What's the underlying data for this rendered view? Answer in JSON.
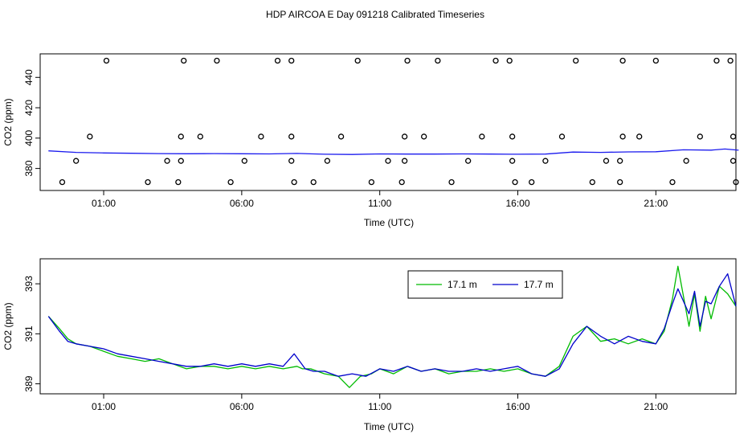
{
  "figure_title": "HDP AIRCOA E  Day 091218  Calibrated Timeseries",
  "chart_data": [
    {
      "type": "scatter",
      "title": "",
      "xlabel": "Time (UTC)",
      "ylabel": "CO2 (ppm)",
      "xlim": [
        -1.3,
        23.9
      ],
      "ylim": [
        365.5,
        455.5
      ],
      "x_ticks": [
        {
          "value": 1,
          "label": "01:00"
        },
        {
          "value": 6,
          "label": "06:00"
        },
        {
          "value": 11,
          "label": "11:00"
        },
        {
          "value": 16,
          "label": "16:00"
        },
        {
          "value": 21,
          "label": "21:00"
        }
      ],
      "y_ticks": [
        {
          "value": 380,
          "label": "380"
        },
        {
          "value": 400,
          "label": "400"
        },
        {
          "value": 420,
          "label": "420"
        },
        {
          "value": 440,
          "label": "440"
        }
      ],
      "points": [
        {
          "x": 1.1,
          "y": 451
        },
        {
          "x": 3.9,
          "y": 451
        },
        {
          "x": 5.1,
          "y": 451
        },
        {
          "x": 7.3,
          "y": 451
        },
        {
          "x": 7.8,
          "y": 451
        },
        {
          "x": 10.2,
          "y": 451
        },
        {
          "x": 12.0,
          "y": 451
        },
        {
          "x": 13.1,
          "y": 451
        },
        {
          "x": 15.2,
          "y": 451
        },
        {
          "x": 15.7,
          "y": 451
        },
        {
          "x": 18.1,
          "y": 451
        },
        {
          "x": 19.8,
          "y": 451
        },
        {
          "x": 21.0,
          "y": 451
        },
        {
          "x": 23.2,
          "y": 451
        },
        {
          "x": 23.7,
          "y": 451
        },
        {
          "x": 0.5,
          "y": 401
        },
        {
          "x": 3.8,
          "y": 401
        },
        {
          "x": 4.5,
          "y": 401
        },
        {
          "x": 6.7,
          "y": 401
        },
        {
          "x": 7.8,
          "y": 401
        },
        {
          "x": 9.6,
          "y": 401
        },
        {
          "x": 11.9,
          "y": 401
        },
        {
          "x": 12.6,
          "y": 401
        },
        {
          "x": 14.7,
          "y": 401
        },
        {
          "x": 15.8,
          "y": 401
        },
        {
          "x": 17.6,
          "y": 401
        },
        {
          "x": 19.8,
          "y": 401
        },
        {
          "x": 20.4,
          "y": 401
        },
        {
          "x": 22.6,
          "y": 401
        },
        {
          "x": 23.8,
          "y": 401
        },
        {
          "x": 0.0,
          "y": 385
        },
        {
          "x": 3.3,
          "y": 385
        },
        {
          "x": 3.8,
          "y": 385
        },
        {
          "x": 6.1,
          "y": 385
        },
        {
          "x": 7.8,
          "y": 385
        },
        {
          "x": 9.1,
          "y": 385
        },
        {
          "x": 11.3,
          "y": 385
        },
        {
          "x": 11.9,
          "y": 385
        },
        {
          "x": 14.2,
          "y": 385
        },
        {
          "x": 15.8,
          "y": 385
        },
        {
          "x": 17.0,
          "y": 385
        },
        {
          "x": 19.2,
          "y": 385
        },
        {
          "x": 19.7,
          "y": 385
        },
        {
          "x": 22.1,
          "y": 385
        },
        {
          "x": 23.8,
          "y": 385
        },
        {
          "x": -0.5,
          "y": 371
        },
        {
          "x": 2.6,
          "y": 371
        },
        {
          "x": 3.7,
          "y": 371
        },
        {
          "x": 5.6,
          "y": 371
        },
        {
          "x": 7.9,
          "y": 371
        },
        {
          "x": 8.6,
          "y": 371
        },
        {
          "x": 10.7,
          "y": 371
        },
        {
          "x": 11.8,
          "y": 371
        },
        {
          "x": 13.6,
          "y": 371
        },
        {
          "x": 15.9,
          "y": 371
        },
        {
          "x": 16.5,
          "y": 371
        },
        {
          "x": 18.7,
          "y": 371
        },
        {
          "x": 19.7,
          "y": 371
        },
        {
          "x": 21.6,
          "y": 371
        },
        {
          "x": 23.9,
          "y": 371
        }
      ],
      "series": [
        {
          "color": "#1a1aee",
          "x": [
            -1.0,
            0,
            1,
            2,
            3,
            4,
            5,
            6,
            7,
            8,
            9,
            10,
            11,
            12,
            13,
            14,
            15,
            16,
            17,
            18,
            19,
            20,
            21,
            22,
            23,
            23.5,
            24.0
          ],
          "y": [
            391.6,
            390.6,
            390.2,
            390.0,
            389.8,
            389.7,
            389.8,
            389.7,
            389.6,
            389.9,
            389.4,
            389.2,
            389.6,
            389.5,
            389.5,
            389.6,
            389.5,
            389.4,
            389.5,
            390.8,
            390.6,
            390.9,
            391.0,
            392.3,
            392.1,
            392.8,
            392.0
          ]
        }
      ]
    },
    {
      "type": "line",
      "title": "",
      "xlabel": "Time (UTC)",
      "ylabel": "CO2 (ppm)",
      "xlim": [
        -1.3,
        23.9
      ],
      "ylim": [
        388.6,
        394.0
      ],
      "x_ticks": [
        {
          "value": 1,
          "label": "01:00"
        },
        {
          "value": 6,
          "label": "06:00"
        },
        {
          "value": 11,
          "label": "11:00"
        },
        {
          "value": 16,
          "label": "16:00"
        },
        {
          "value": 21,
          "label": "21:00"
        }
      ],
      "y_ticks": [
        {
          "value": 389,
          "label": "389"
        },
        {
          "value": 391,
          "label": "391"
        },
        {
          "value": 393,
          "label": "393"
        }
      ],
      "legend_position": "top-right",
      "series": [
        {
          "name": "17.1 m",
          "color": "#00bb00",
          "x": [
            -1.0,
            -0.6,
            -0.3,
            0,
            0.5,
            1,
            1.5,
            2,
            2.5,
            3,
            3.5,
            4,
            4.5,
            5,
            5.5,
            6,
            6.5,
            7,
            7.5,
            8,
            8.2,
            8.5,
            9,
            9.5,
            9.9,
            10.3,
            10.7,
            11,
            11.5,
            12,
            12.5,
            13,
            13.5,
            14,
            14.5,
            15,
            15.5,
            16,
            16.5,
            17,
            17.5,
            18,
            18.5,
            19,
            19.5,
            20,
            20.5,
            21,
            21.3,
            21.6,
            21.8,
            22.0,
            22.2,
            22.4,
            22.6,
            22.8,
            23.0,
            23.3,
            23.6,
            23.9
          ],
          "y": [
            391.7,
            391.2,
            390.8,
            390.6,
            390.5,
            390.3,
            390.1,
            390.0,
            389.9,
            390.0,
            389.8,
            389.6,
            389.7,
            389.7,
            389.6,
            389.7,
            389.6,
            389.7,
            389.6,
            389.7,
            389.6,
            389.6,
            389.4,
            389.3,
            388.85,
            389.3,
            389.4,
            389.6,
            389.4,
            389.7,
            389.5,
            389.6,
            389.4,
            389.5,
            389.5,
            389.6,
            389.5,
            389.6,
            389.4,
            389.3,
            389.7,
            390.9,
            391.3,
            390.7,
            390.8,
            390.6,
            390.8,
            390.6,
            391.1,
            392.4,
            393.7,
            392.5,
            391.3,
            392.6,
            391.1,
            392.5,
            391.6,
            392.9,
            392.6,
            392.1
          ]
        },
        {
          "name": "17.7 m",
          "color": "#0000cc",
          "x": [
            -1.0,
            -0.6,
            -0.3,
            0,
            0.5,
            1,
            1.5,
            2,
            2.5,
            3,
            3.5,
            4,
            4.5,
            5,
            5.5,
            6,
            6.5,
            7,
            7.5,
            7.9,
            8.3,
            8.6,
            9,
            9.5,
            10,
            10.5,
            11,
            11.5,
            12,
            12.5,
            13,
            13.5,
            14,
            14.5,
            15,
            15.5,
            16,
            16.5,
            17,
            17.5,
            18,
            18.5,
            19,
            19.5,
            20,
            20.5,
            21,
            21.3,
            21.6,
            21.8,
            22.0,
            22.2,
            22.4,
            22.6,
            22.8,
            23.0,
            23.3,
            23.6,
            23.9
          ],
          "y": [
            391.7,
            391.1,
            390.7,
            390.6,
            390.5,
            390.4,
            390.2,
            390.1,
            390.0,
            389.9,
            389.8,
            389.7,
            389.7,
            389.8,
            389.7,
            389.8,
            389.7,
            389.8,
            389.7,
            390.2,
            389.6,
            389.5,
            389.5,
            389.3,
            389.4,
            389.3,
            389.6,
            389.5,
            389.7,
            389.5,
            389.6,
            389.5,
            389.5,
            389.6,
            389.5,
            389.6,
            389.7,
            389.4,
            389.3,
            389.6,
            390.6,
            391.3,
            390.9,
            390.6,
            390.9,
            390.7,
            390.6,
            391.2,
            392.2,
            392.8,
            392.3,
            391.8,
            392.7,
            391.3,
            392.3,
            392.2,
            392.9,
            393.4,
            392.1
          ]
        }
      ]
    }
  ]
}
